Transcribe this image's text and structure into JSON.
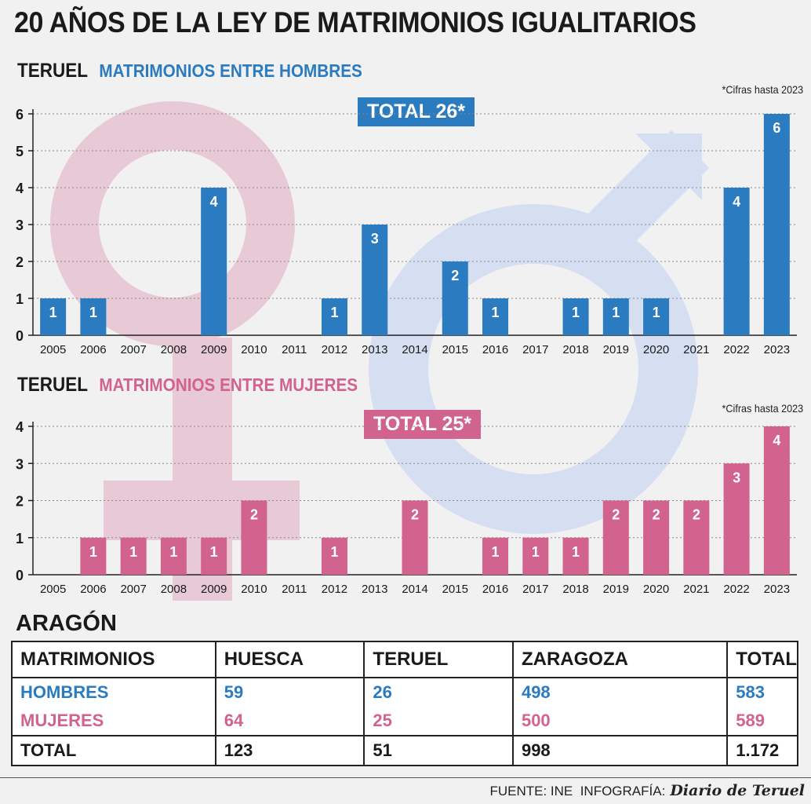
{
  "title": "20 AÑOS DE LA LEY DE MATRIMONIOS IGUALITARIOS",
  "colors": {
    "men": "#2b7bc0",
    "women": "#d2638f"
  },
  "charts": [
    {
      "place": "TERUEL",
      "subtitle": "MATRIMONIOS ENTRE HOMBRES",
      "note": "*Cifras hasta 2023",
      "total_label": "TOTAL 26*"
    },
    {
      "place": "TERUEL",
      "subtitle": "MATRIMONIOS ENTRE MUJERES",
      "note": "*Cifras hasta 2023",
      "total_label": "TOTAL 25*"
    }
  ],
  "chart_data": [
    {
      "type": "bar",
      "title": "MATRIMONIOS ENTRE HOMBRES",
      "categories": [
        "2005",
        "2006",
        "2007",
        "2008",
        "2009",
        "2010",
        "2011",
        "2012",
        "2013",
        "2014",
        "2015",
        "2016",
        "2017",
        "2018",
        "2019",
        "2020",
        "2021",
        "2022",
        "2023"
      ],
      "values": [
        1,
        1,
        0,
        0,
        4,
        0,
        0,
        1,
        3,
        0,
        2,
        1,
        0,
        1,
        1,
        1,
        0,
        4,
        6
      ],
      "ylim": [
        0,
        6
      ],
      "yticks": [
        0,
        1,
        2,
        3,
        4,
        5,
        6
      ],
      "grid": true,
      "color": "#2b7bc0"
    },
    {
      "type": "bar",
      "title": "MATRIMONIOS ENTRE MUJERES",
      "categories": [
        "2005",
        "2006",
        "2007",
        "2008",
        "2009",
        "2010",
        "2011",
        "2012",
        "2013",
        "2014",
        "2015",
        "2016",
        "2017",
        "2018",
        "2019",
        "2020",
        "2021",
        "2022",
        "2023"
      ],
      "values": [
        0,
        1,
        1,
        1,
        1,
        2,
        0,
        1,
        0,
        2,
        0,
        1,
        1,
        1,
        2,
        2,
        2,
        3,
        4
      ],
      "ylim": [
        0,
        4
      ],
      "yticks": [
        0,
        1,
        2,
        3,
        4
      ],
      "grid": true,
      "color": "#d2638f"
    }
  ],
  "region": "ARAGÓN",
  "table": {
    "headers": [
      "MATRIMONIOS",
      "HUESCA",
      "TERUEL",
      "ZARAGOZA",
      "TOTAL"
    ],
    "rows": [
      {
        "label": "HOMBRES",
        "values": [
          "59",
          "26",
          "498",
          "583"
        ]
      },
      {
        "label": "MUJERES",
        "values": [
          "64",
          "25",
          "500",
          "589"
        ]
      },
      {
        "label": "TOTAL",
        "values": [
          "123",
          "51",
          "998",
          "1.172"
        ]
      }
    ]
  },
  "footer": {
    "source": "FUENTE: INE",
    "credit": "INFOGRAFÍA:",
    "brand": "Diario de Teruel"
  }
}
